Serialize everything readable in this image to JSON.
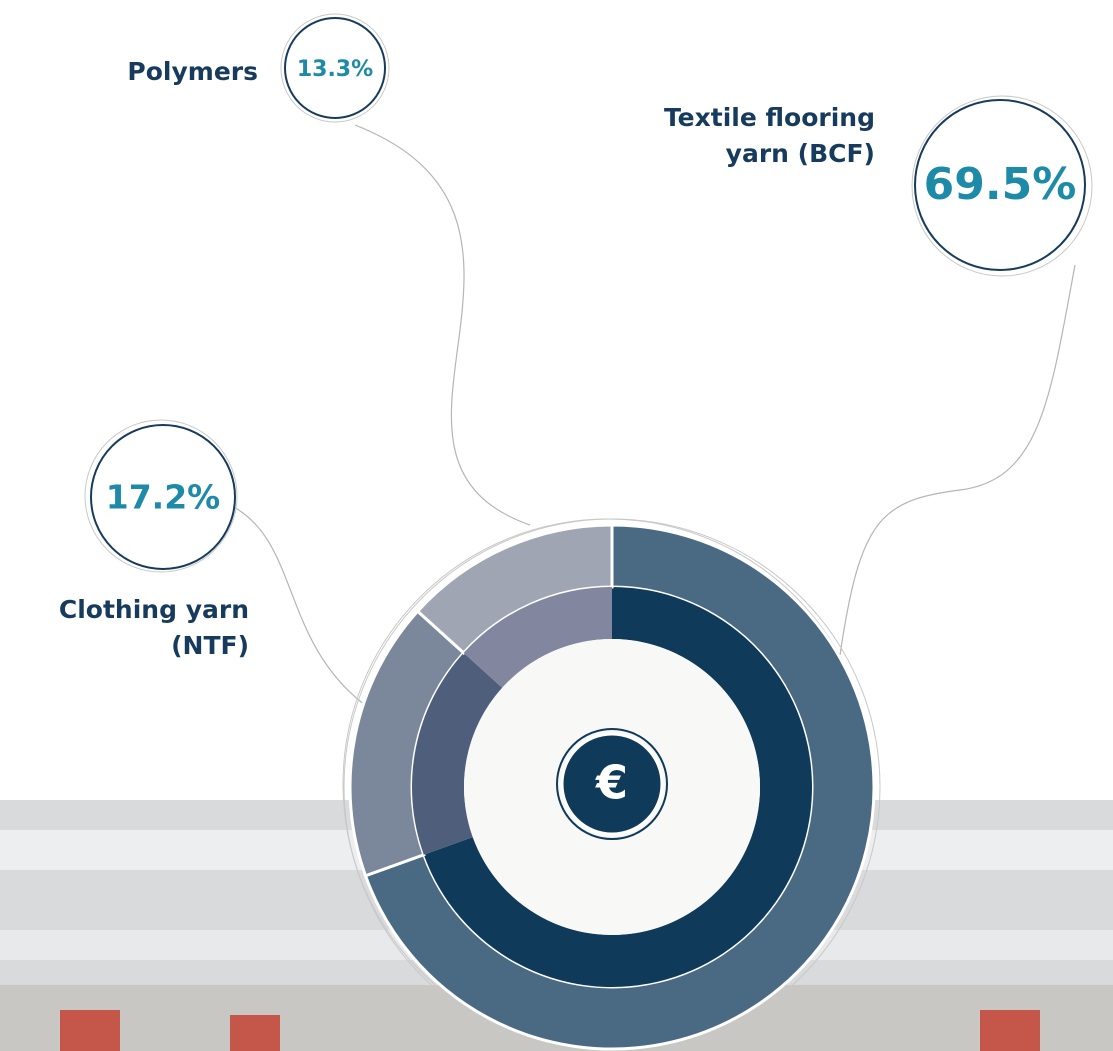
{
  "chart_data": {
    "type": "donut",
    "categories": [
      "Textile flooring yarn (BCF)",
      "Clothing yarn (NTF)",
      "Polymers"
    ],
    "values": [
      69.5,
      17.2,
      13.3
    ],
    "value_labels": [
      "69.5%",
      "17.2%",
      "13.3%"
    ],
    "colors": [
      "#4a6a84",
      "#7b889c",
      "#9fa5b3"
    ],
    "inner_colors": [
      "#0f3a5a",
      "#4f5f7b",
      "#82879f"
    ],
    "center_label": "€"
  }
}
